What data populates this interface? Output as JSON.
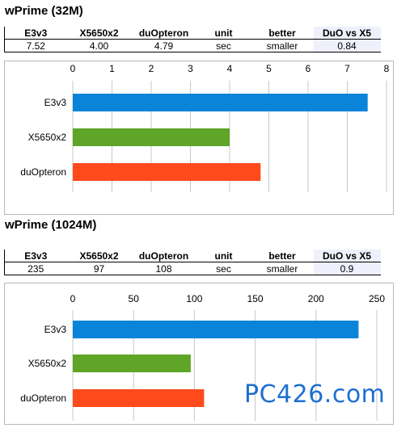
{
  "charts": [
    {
      "title": "wPrime (32M)",
      "table": {
        "headers": [
          "E3v3",
          "X5650x2",
          "duOpteron",
          "unit",
          "better",
          "DuO vs X5"
        ],
        "values": [
          "7.52",
          "4.00",
          "4.79",
          "sec",
          "smaller",
          "0.84"
        ]
      }
    },
    {
      "title": "wPrime (1024M)",
      "table": {
        "headers": [
          "E3v3",
          "X5650x2",
          "duOpteron",
          "unit",
          "better",
          "DuO vs X5"
        ],
        "values": [
          "235",
          "97",
          "108",
          "sec",
          "smaller",
          "0.9"
        ]
      }
    }
  ],
  "chart_data": [
    {
      "type": "bar",
      "orientation": "horizontal",
      "title": "wPrime (32M)",
      "categories": [
        "E3v3",
        "X5650x2",
        "duOpteron"
      ],
      "values": [
        7.52,
        4.0,
        4.79
      ],
      "colors": [
        "#0a84d8",
        "#5fa528",
        "#ff4a1c"
      ],
      "xlim": [
        0,
        8
      ],
      "ticks": [
        0,
        1,
        2,
        3,
        4,
        5,
        6,
        7,
        8
      ],
      "tick_labels": [
        "0",
        "1",
        "2",
        "3",
        "4",
        "5",
        "6",
        "7",
        "8"
      ],
      "xlabel": "",
      "ylabel": "",
      "grid": "vertical"
    },
    {
      "type": "bar",
      "orientation": "horizontal",
      "title": "wPrime (1024M)",
      "categories": [
        "E3v3",
        "X5650x2",
        "duOpteron"
      ],
      "values": [
        235,
        97,
        108
      ],
      "colors": [
        "#0a84d8",
        "#5fa528",
        "#ff4a1c"
      ],
      "xlim": [
        0,
        250
      ],
      "ticks": [
        0,
        50,
        100,
        150,
        200,
        250
      ],
      "tick_labels": [
        "0",
        "50",
        "100",
        "150",
        "200",
        "250"
      ],
      "xlabel": "",
      "ylabel": "",
      "grid": "vertical"
    }
  ],
  "watermark": "PC426.com"
}
